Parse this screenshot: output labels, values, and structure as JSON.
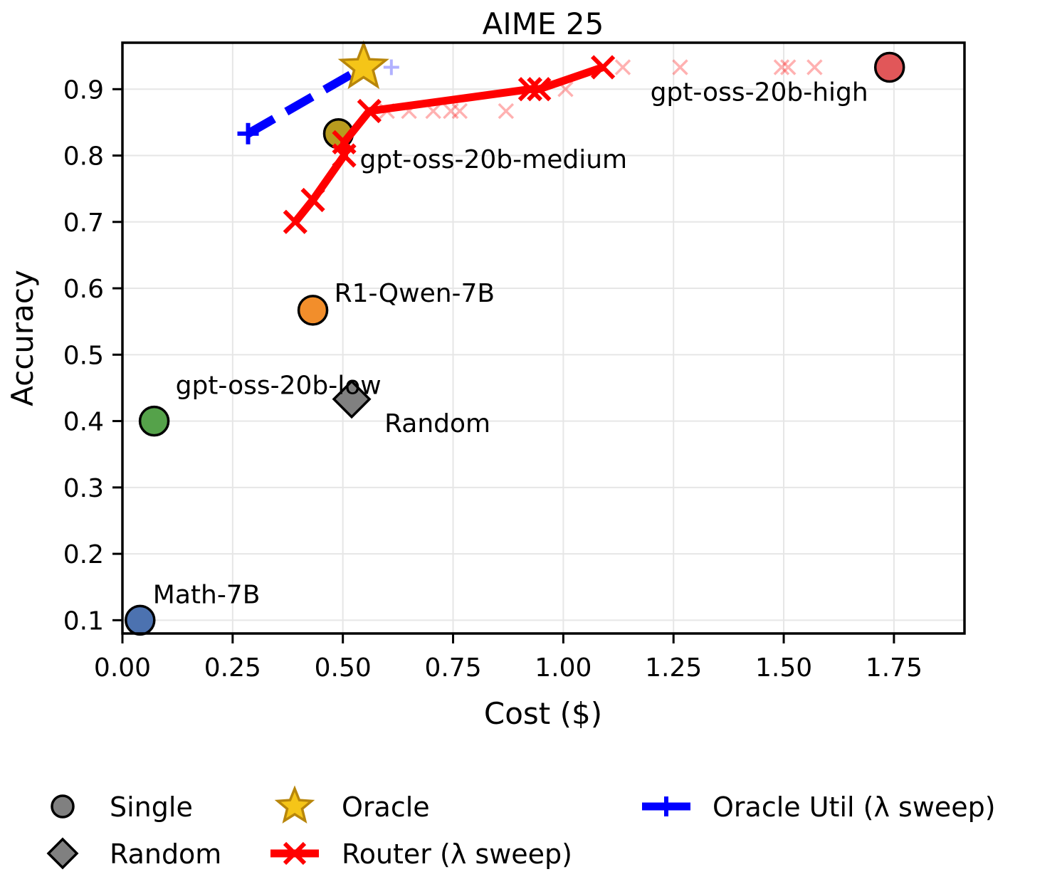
{
  "chart_data": {
    "type": "scatter",
    "title": "AIME 25",
    "xlabel": "Cost ($)",
    "ylabel": "Accuracy",
    "xlim": [
      0.0,
      1.91
    ],
    "ylim": [
      0.08,
      0.97
    ],
    "xticks": [
      {
        "value": 0.0,
        "label": "0.00"
      },
      {
        "value": 0.25,
        "label": "0.25"
      },
      {
        "value": 0.5,
        "label": "0.50"
      },
      {
        "value": 0.75,
        "label": "0.75"
      },
      {
        "value": 1.0,
        "label": "1.00"
      },
      {
        "value": 1.25,
        "label": "1.25"
      },
      {
        "value": 1.5,
        "label": "1.50"
      },
      {
        "value": 1.75,
        "label": "1.75"
      }
    ],
    "yticks": [
      {
        "value": 0.1,
        "label": "0.1"
      },
      {
        "value": 0.2,
        "label": "0.2"
      },
      {
        "value": 0.3,
        "label": "0.3"
      },
      {
        "value": 0.4,
        "label": "0.4"
      },
      {
        "value": 0.5,
        "label": "0.5"
      },
      {
        "value": 0.6,
        "label": "0.6"
      },
      {
        "value": 0.7,
        "label": "0.7"
      },
      {
        "value": 0.8,
        "label": "0.8"
      },
      {
        "value": 0.9,
        "label": "0.9"
      }
    ],
    "grid": true,
    "single_models": [
      {
        "name": "Math-7B",
        "x": 0.04,
        "y": 0.1,
        "color": "#4c72b0"
      },
      {
        "name": "gpt-oss-20b-low",
        "x": 0.072,
        "y": 0.4,
        "color": "#55a24a"
      },
      {
        "name": "R1-Qwen-7B",
        "x": 0.432,
        "y": 0.567,
        "color": "#f28e2b"
      },
      {
        "name": "gpt-oss-20b-medium",
        "x": 0.49,
        "y": 0.833,
        "color": "#b89b1e"
      },
      {
        "name": "gpt-oss-20b-high",
        "x": 1.74,
        "y": 0.933,
        "color": "#e15759"
      }
    ],
    "random": {
      "name": "Random",
      "x": 0.52,
      "y": 0.433,
      "color": "#808080"
    },
    "oracle": {
      "name": "Oracle",
      "x": 0.547,
      "y": 0.933,
      "color": "#f5c518"
    },
    "oracle_util": {
      "name": "Oracle Util (λ sweep)",
      "color": "#0000ff",
      "points": [
        {
          "x": 0.285,
          "y": 0.833
        },
        {
          "x": 0.547,
          "y": 0.933
        }
      ],
      "faint_points": [
        {
          "x": 0.61,
          "y": 0.933
        }
      ]
    },
    "router": {
      "name": "Router (λ sweep)",
      "color": "#ff0000",
      "points": [
        {
          "x": 0.392,
          "y": 0.7
        },
        {
          "x": 0.432,
          "y": 0.733
        },
        {
          "x": 0.503,
          "y": 0.8
        },
        {
          "x": 0.503,
          "y": 0.82
        },
        {
          "x": 0.56,
          "y": 0.867
        },
        {
          "x": 0.925,
          "y": 0.9
        },
        {
          "x": 0.945,
          "y": 0.9
        },
        {
          "x": 1.09,
          "y": 0.933
        }
      ],
      "faint_points": [
        {
          "x": 0.6,
          "y": 0.867
        },
        {
          "x": 0.65,
          "y": 0.867
        },
        {
          "x": 0.705,
          "y": 0.867
        },
        {
          "x": 0.745,
          "y": 0.867
        },
        {
          "x": 0.765,
          "y": 0.867
        },
        {
          "x": 0.87,
          "y": 0.867
        },
        {
          "x": 1.005,
          "y": 0.9
        },
        {
          "x": 1.135,
          "y": 0.933
        },
        {
          "x": 1.265,
          "y": 0.933
        },
        {
          "x": 1.495,
          "y": 0.933
        },
        {
          "x": 1.51,
          "y": 0.933
        },
        {
          "x": 1.57,
          "y": 0.933
        }
      ]
    },
    "legend": {
      "placement": "bottom",
      "entries": [
        {
          "label": "Single",
          "marker": "circle",
          "color": "#808080"
        },
        {
          "label": "Random",
          "marker": "diamond",
          "color": "#808080"
        },
        {
          "label": "Oracle",
          "marker": "star",
          "color": "#f5c518"
        },
        {
          "label": "Router (λ sweep)",
          "marker": "x-line",
          "color": "#ff0000"
        },
        {
          "label": "Oracle Util (λ sweep)",
          "marker": "plus-line",
          "color": "#0000ff"
        }
      ]
    }
  }
}
